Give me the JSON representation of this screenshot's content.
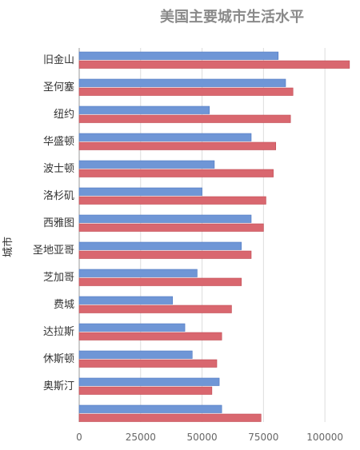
{
  "chart_data": {
    "type": "bar",
    "orientation": "horizontal",
    "title": "美国主要城市生活水平",
    "ylabel": "城市",
    "xlabel": "",
    "categories": [
      "旧金山",
      "圣何塞",
      "纽约",
      "华盛顿",
      "波士顿",
      "洛杉矶",
      "西雅图",
      "圣地亚哥",
      "芝加哥",
      "费城",
      "达拉斯",
      "休斯顿",
      "奥斯汀",
      ""
    ],
    "series": [
      {
        "color": "#6f96d6",
        "values": [
          81000,
          84000,
          53000,
          70000,
          55000,
          50000,
          70000,
          66000,
          48000,
          38000,
          43000,
          46000,
          57000,
          58000
        ]
      },
      {
        "color": "#d9676f",
        "values": [
          110000,
          87000,
          86000,
          80000,
          79000,
          76000,
          75000,
          70000,
          66000,
          62000,
          58000,
          56000,
          54000,
          74000
        ]
      }
    ],
    "xlim": [
      0,
      112000
    ],
    "xticks": [
      "0",
      "25000",
      "50000",
      "75000",
      "100000"
    ],
    "xtick_values": [
      0,
      25000,
      50000,
      75000,
      100000
    ],
    "grid": true,
    "legend": "none"
  }
}
